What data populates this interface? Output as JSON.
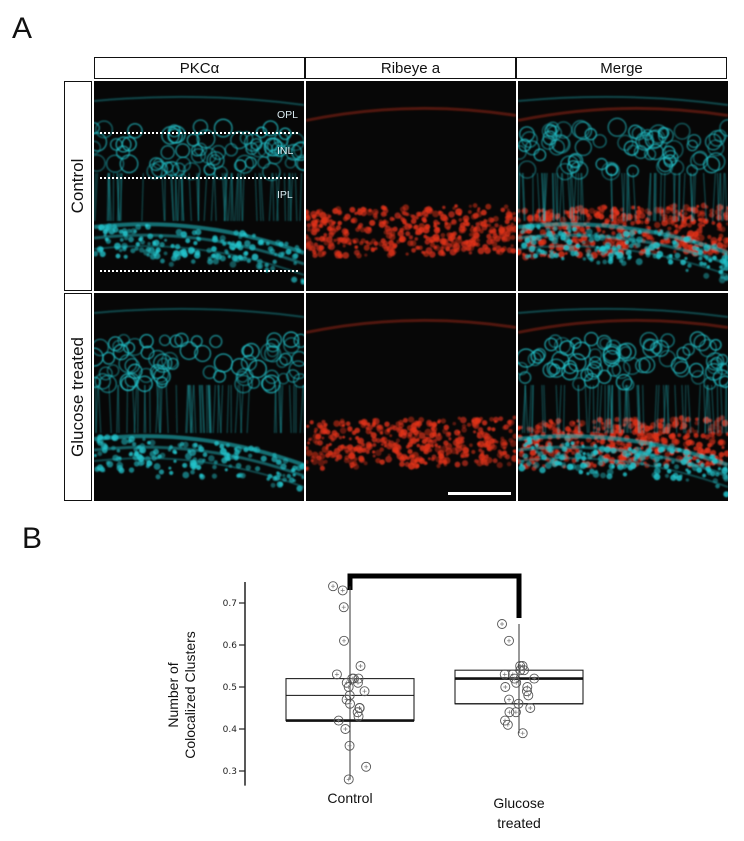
{
  "figure": {
    "panel_a_label": "A",
    "panel_b_label": "B",
    "columns": [
      "PKCα",
      "Ribeye a",
      "Merge"
    ],
    "rows": [
      "Control",
      "Glucose treated"
    ],
    "layer_labels": {
      "opl": "OPL",
      "inl": "INL",
      "ipl": "IPL"
    },
    "colors": {
      "pkc": "#22c4cc",
      "ribeye": "#e0321a",
      "background": "#070707"
    }
  },
  "chart_data": {
    "type": "box",
    "ylabel_line1": "Number of",
    "ylabel_line2": "Colocalized Clusters",
    "categories": [
      "Control",
      "Glucose treated"
    ],
    "category_lines": [
      [
        "Control"
      ],
      [
        "Glucose",
        "treated"
      ]
    ],
    "yticks": [
      0.3,
      0.4,
      0.5,
      0.6,
      0.7
    ],
    "ytick_labels": [
      "0.3",
      "0.4",
      "0.5",
      "0.6",
      "0.7"
    ],
    "ylim": [
      0.27,
      0.75
    ],
    "series": [
      {
        "category": "Control",
        "min": 0.28,
        "q1": 0.42,
        "median": 0.48,
        "q3": 0.52,
        "max": 0.74,
        "points": [
          0.74,
          0.73,
          0.69,
          0.61,
          0.55,
          0.53,
          0.52,
          0.52,
          0.52,
          0.51,
          0.51,
          0.5,
          0.49,
          0.48,
          0.47,
          0.46,
          0.45,
          0.45,
          0.44,
          0.43,
          0.42,
          0.4,
          0.36,
          0.31,
          0.28
        ]
      },
      {
        "category": "Glucose treated",
        "min": 0.39,
        "q1": 0.46,
        "median": 0.52,
        "q3": 0.54,
        "max": 0.65,
        "points": [
          0.65,
          0.61,
          0.55,
          0.55,
          0.54,
          0.54,
          0.53,
          0.53,
          0.52,
          0.52,
          0.51,
          0.5,
          0.5,
          0.49,
          0.48,
          0.47,
          0.46,
          0.45,
          0.44,
          0.44,
          0.42,
          0.41,
          0.39
        ]
      }
    ],
    "significance_bracket": [
      "Control",
      "Glucose treated"
    ]
  }
}
